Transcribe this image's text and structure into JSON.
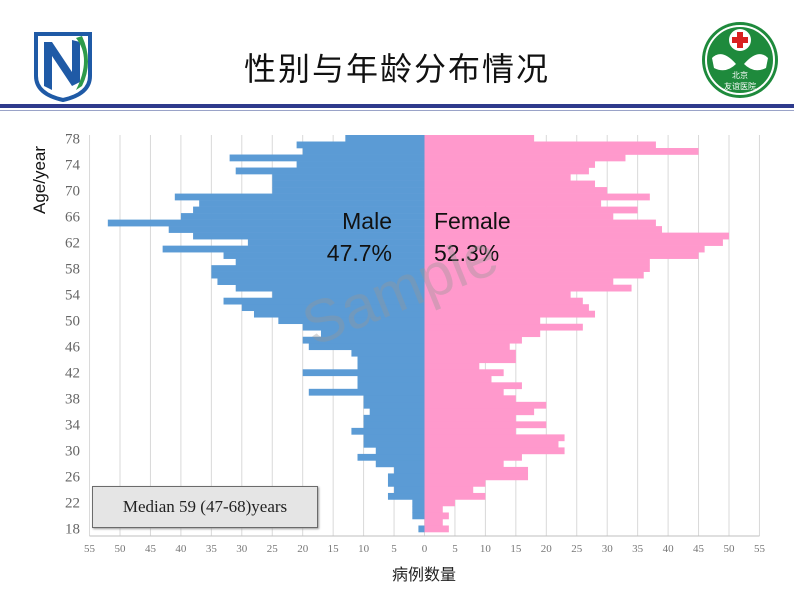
{
  "page": {
    "title": "性别与年龄分布情况"
  },
  "logo_right": {
    "text_line1": "北京",
    "text_line2": "友谊医院"
  },
  "watermark": "Sample",
  "median_note": "Median 59 (47-68)years",
  "colors": {
    "male": "#5b9bd5",
    "female": "#ff99cc",
    "header_rule": "#2e3a8c",
    "logo_left_blue": "#1f5aa6",
    "logo_left_green": "#2e9a4a",
    "logo_right_green": "#1e8a3c"
  },
  "chart_data": {
    "type": "bar",
    "orientation": "horizontal-population-pyramid",
    "ylabel": "Age/year",
    "xlabel": "病例数量",
    "xlim": [
      -55,
      55
    ],
    "ages": [
      18,
      78
    ],
    "y_ticks": [
      "18",
      "22",
      "26",
      "30",
      "34",
      "38",
      "42",
      "46",
      "50",
      "54",
      "58",
      "62",
      "66",
      "70",
      "74",
      "78"
    ],
    "x_ticks": [
      "55",
      "50",
      "45",
      "40",
      "35",
      "30",
      "25",
      "20",
      "15",
      "10",
      "5",
      "0",
      "5",
      "10",
      "15",
      "20",
      "25",
      "30",
      "35",
      "40",
      "45",
      "50",
      "55"
    ],
    "grid": true,
    "series": [
      {
        "name": "Male",
        "percent": "47.7%",
        "values": [
          1,
          0,
          2,
          2,
          2,
          6,
          5,
          6,
          6,
          5,
          8,
          11,
          8,
          10,
          10,
          12,
          10,
          10,
          9,
          10,
          10,
          19,
          11,
          11,
          20,
          11,
          11,
          12,
          19,
          20,
          17,
          20,
          24,
          28,
          30,
          33,
          25,
          31,
          34,
          35,
          35,
          31,
          33,
          43,
          29,
          38,
          42,
          52,
          40,
          38,
          37,
          41,
          25,
          25,
          25,
          31,
          21,
          32,
          20,
          21,
          13
        ],
        "color": "#5b9bd5"
      },
      {
        "name": "Female",
        "percent": "52.3%",
        "values": [
          4,
          3,
          4,
          3,
          5,
          10,
          8,
          10,
          17,
          17,
          13,
          16,
          23,
          22,
          23,
          15,
          20,
          15,
          18,
          20,
          15,
          13,
          16,
          11,
          13,
          9,
          15,
          15,
          14,
          16,
          19,
          26,
          19,
          28,
          27,
          26,
          24,
          34,
          31,
          36,
          37,
          37,
          45,
          46,
          49,
          50,
          39,
          38,
          31,
          35,
          29,
          37,
          30,
          28,
          24,
          27,
          28,
          33,
          45,
          38,
          18
        ]
      }
    ],
    "center_labels": {
      "male_label": "Male",
      "male_pct": "47.7%",
      "female_label": "Female",
      "female_pct": "52.3%"
    }
  }
}
